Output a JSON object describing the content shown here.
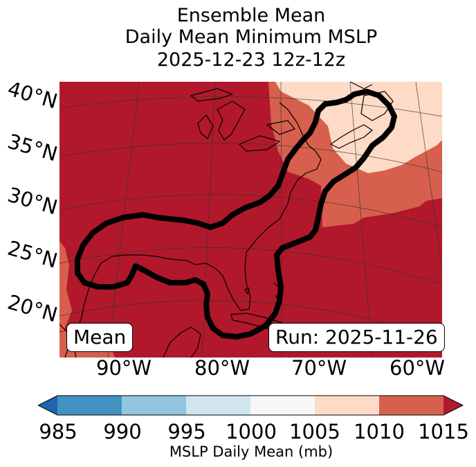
{
  "title": {
    "line1": "Ensemble Mean",
    "line2": "Daily Mean Minimum MSLP",
    "line3": "2025-12-23 12z-12z"
  },
  "map": {
    "lat_labels": [
      "40°N",
      "35°N",
      "30°N",
      "25°N",
      "20°N"
    ],
    "lon_labels": [
      "90°W",
      "80°W",
      "70°W",
      "60°W"
    ],
    "inset_left": "Mean",
    "inset_right": "Run: 2025-11-26",
    "contour_color": "#000000",
    "land_outline_color": "#000000",
    "gridline_color": "#333333"
  },
  "colorbar": {
    "label": "MSLP Daily Mean (mb)",
    "ticks": [
      "985",
      "990",
      "995",
      "1000",
      "1005",
      "1010",
      "1015"
    ],
    "tick_values": [
      985,
      990,
      995,
      1000,
      1005,
      1010,
      1015
    ],
    "colors": {
      "under": "#2166ac",
      "bin_985_990": "#4393c3",
      "bin_990_995": "#92c5de",
      "bin_995_1000": "#d1e5f0",
      "bin_1000_1005": "#f7f7f7",
      "bin_1005_1010": "#fddbc7",
      "bin_1010_1015": "#d6604d",
      "over": "#b2182b"
    }
  }
}
